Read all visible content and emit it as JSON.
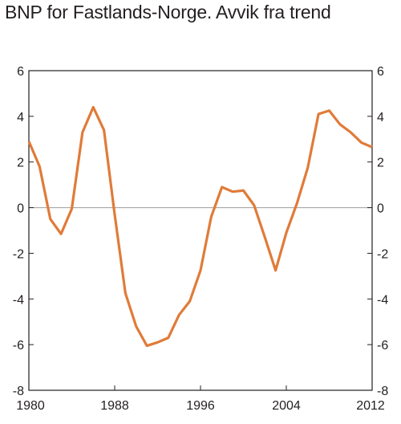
{
  "chart_data": {
    "type": "line",
    "title": "BNP for Fastlands-Norge. Avvik fra trend",
    "xlabel": "",
    "ylabel": "",
    "xlim": [
      1980,
      2012
    ],
    "ylim": [
      -8,
      6
    ],
    "x_ticks": [
      1980,
      1988,
      1996,
      2004,
      2012
    ],
    "y_ticks": [
      -8,
      -6,
      -4,
      -2,
      0,
      2,
      4,
      6
    ],
    "y_tick_labels": [
      "-8",
      "-6",
      "-4",
      "-2",
      "0",
      "2",
      "4",
      "6"
    ],
    "x_tick_labels": [
      "1980",
      "1988",
      "1996",
      "2004",
      "2012"
    ],
    "zero_line": true,
    "grid": false,
    "line_color": "#e07b39",
    "series": [
      {
        "x": [
          1980,
          1981,
          1982,
          1983,
          1984,
          1985,
          1986,
          1987,
          1988,
          1989,
          1990,
          1991,
          1992,
          1993,
          1994,
          1995,
          1996,
          1997,
          1998,
          1999,
          2000,
          2001,
          2002,
          2003,
          2004,
          2005,
          2006,
          2007,
          2008,
          2009,
          2010,
          2011,
          2012
        ],
        "values": [
          2.9,
          1.8,
          -0.5,
          -1.15,
          -0.05,
          3.3,
          4.4,
          3.4,
          -0.3,
          -3.75,
          -5.2,
          -6.05,
          -5.9,
          -5.7,
          -4.7,
          -4.1,
          -2.75,
          -0.4,
          0.9,
          0.7,
          0.75,
          0.1,
          -1.3,
          -2.75,
          -1.1,
          0.2,
          1.75,
          4.1,
          4.25,
          3.65,
          3.3,
          2.85,
          2.65
        ]
      }
    ]
  }
}
